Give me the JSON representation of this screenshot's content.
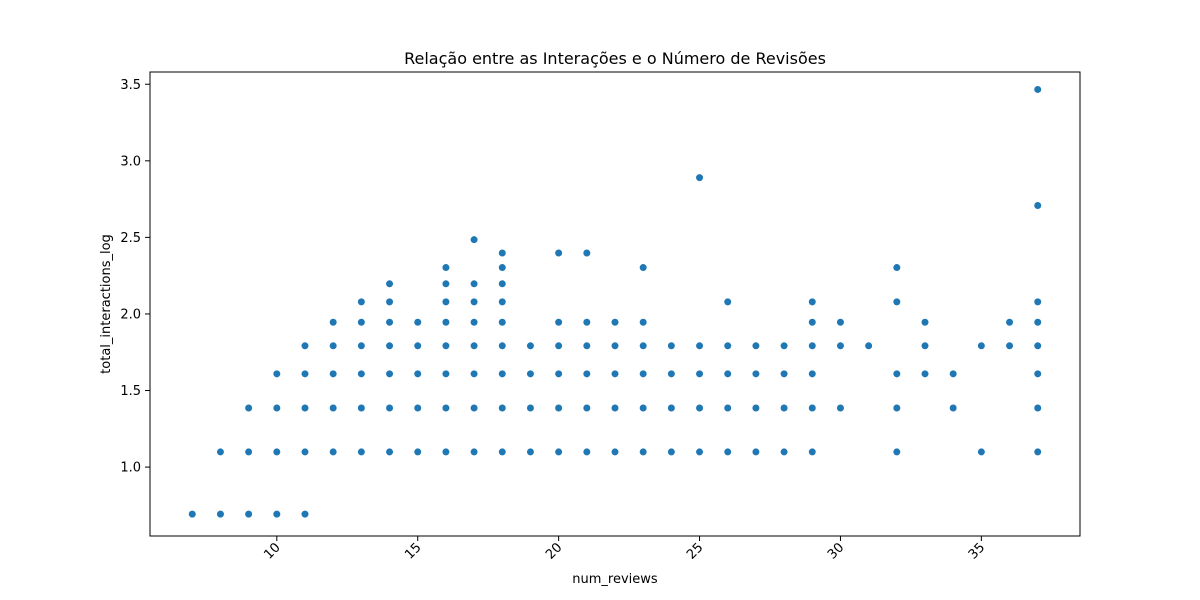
{
  "chart_data": {
    "type": "scatter",
    "title": "Relação entre as Interações e o Número de Revisões",
    "xlabel": "num_reviews",
    "ylabel": "total_interactions_log",
    "xlim": [
      5.5,
      38.5
    ],
    "ylim": [
      0.55,
      3.58
    ],
    "xticks": [
      10,
      15,
      20,
      25,
      30,
      35
    ],
    "xtick_labels": [
      "10",
      "15",
      "20",
      "25",
      "30",
      "35"
    ],
    "yticks": [
      1.0,
      1.5,
      2.0,
      2.5,
      3.0,
      3.5
    ],
    "ytick_labels": [
      "1.0",
      "1.5",
      "2.0",
      "2.5",
      "3.0",
      "3.5"
    ],
    "grid": false,
    "marker_color": "#1f77b4",
    "series": [
      {
        "points": [
          [
            7,
            0.693
          ],
          [
            8,
            0.693
          ],
          [
            8,
            1.099
          ],
          [
            9,
            0.693
          ],
          [
            9,
            1.099
          ],
          [
            9,
            1.386
          ],
          [
            10,
            0.693
          ],
          [
            10,
            1.099
          ],
          [
            10,
            1.386
          ],
          [
            10,
            1.609
          ],
          [
            11,
            0.693
          ],
          [
            11,
            1.099
          ],
          [
            11,
            1.386
          ],
          [
            11,
            1.609
          ],
          [
            11,
            1.792
          ],
          [
            12,
            1.099
          ],
          [
            12,
            1.386
          ],
          [
            12,
            1.609
          ],
          [
            12,
            1.792
          ],
          [
            12,
            1.946
          ],
          [
            13,
            1.099
          ],
          [
            13,
            1.386
          ],
          [
            13,
            1.609
          ],
          [
            13,
            1.792
          ],
          [
            13,
            1.946
          ],
          [
            13,
            2.079
          ],
          [
            14,
            1.099
          ],
          [
            14,
            1.386
          ],
          [
            14,
            1.609
          ],
          [
            14,
            1.792
          ],
          [
            14,
            1.946
          ],
          [
            14,
            2.079
          ],
          [
            14,
            2.197
          ],
          [
            15,
            1.099
          ],
          [
            15,
            1.386
          ],
          [
            15,
            1.609
          ],
          [
            15,
            1.792
          ],
          [
            15,
            1.946
          ],
          [
            16,
            1.099
          ],
          [
            16,
            1.386
          ],
          [
            16,
            1.609
          ],
          [
            16,
            1.792
          ],
          [
            16,
            1.946
          ],
          [
            16,
            2.079
          ],
          [
            16,
            2.197
          ],
          [
            16,
            2.303
          ],
          [
            17,
            1.099
          ],
          [
            17,
            1.386
          ],
          [
            17,
            1.609
          ],
          [
            17,
            1.792
          ],
          [
            17,
            1.946
          ],
          [
            17,
            2.079
          ],
          [
            17,
            2.197
          ],
          [
            17,
            2.485
          ],
          [
            18,
            1.099
          ],
          [
            18,
            1.386
          ],
          [
            18,
            1.609
          ],
          [
            18,
            1.792
          ],
          [
            18,
            1.946
          ],
          [
            18,
            2.079
          ],
          [
            18,
            2.197
          ],
          [
            18,
            2.303
          ],
          [
            18,
            2.398
          ],
          [
            19,
            1.099
          ],
          [
            19,
            1.386
          ],
          [
            19,
            1.609
          ],
          [
            19,
            1.792
          ],
          [
            20,
            1.099
          ],
          [
            20,
            1.386
          ],
          [
            20,
            1.609
          ],
          [
            20,
            1.792
          ],
          [
            20,
            1.946
          ],
          [
            20,
            2.398
          ],
          [
            21,
            1.099
          ],
          [
            21,
            1.386
          ],
          [
            21,
            1.609
          ],
          [
            21,
            1.792
          ],
          [
            21,
            1.946
          ],
          [
            21,
            2.398
          ],
          [
            22,
            1.099
          ],
          [
            22,
            1.386
          ],
          [
            22,
            1.609
          ],
          [
            22,
            1.792
          ],
          [
            22,
            1.946
          ],
          [
            23,
            1.099
          ],
          [
            23,
            1.386
          ],
          [
            23,
            1.609
          ],
          [
            23,
            1.792
          ],
          [
            23,
            1.946
          ],
          [
            23,
            2.303
          ],
          [
            24,
            1.099
          ],
          [
            24,
            1.386
          ],
          [
            24,
            1.609
          ],
          [
            24,
            1.792
          ],
          [
            25,
            1.099
          ],
          [
            25,
            1.386
          ],
          [
            25,
            1.609
          ],
          [
            25,
            1.792
          ],
          [
            25,
            2.89
          ],
          [
            26,
            1.099
          ],
          [
            26,
            1.386
          ],
          [
            26,
            1.609
          ],
          [
            26,
            1.792
          ],
          [
            26,
            2.079
          ],
          [
            27,
            1.099
          ],
          [
            27,
            1.386
          ],
          [
            27,
            1.609
          ],
          [
            27,
            1.792
          ],
          [
            28,
            1.099
          ],
          [
            28,
            1.386
          ],
          [
            28,
            1.609
          ],
          [
            28,
            1.792
          ],
          [
            29,
            1.099
          ],
          [
            29,
            1.386
          ],
          [
            29,
            1.609
          ],
          [
            29,
            1.792
          ],
          [
            29,
            1.946
          ],
          [
            29,
            2.079
          ],
          [
            30,
            1.386
          ],
          [
            30,
            1.792
          ],
          [
            30,
            1.946
          ],
          [
            31,
            1.792
          ],
          [
            32,
            1.099
          ],
          [
            32,
            1.386
          ],
          [
            32,
            1.609
          ],
          [
            32,
            2.079
          ],
          [
            32,
            2.303
          ],
          [
            33,
            1.609
          ],
          [
            33,
            1.792
          ],
          [
            33,
            1.946
          ],
          [
            34,
            1.386
          ],
          [
            34,
            1.609
          ],
          [
            35,
            1.099
          ],
          [
            35,
            1.792
          ],
          [
            36,
            1.792
          ],
          [
            36,
            1.946
          ],
          [
            37,
            1.099
          ],
          [
            37,
            1.386
          ],
          [
            37,
            1.609
          ],
          [
            37,
            1.792
          ],
          [
            37,
            1.946
          ],
          [
            37,
            2.079
          ],
          [
            37,
            2.708
          ],
          [
            37,
            3.466
          ]
        ]
      }
    ]
  }
}
